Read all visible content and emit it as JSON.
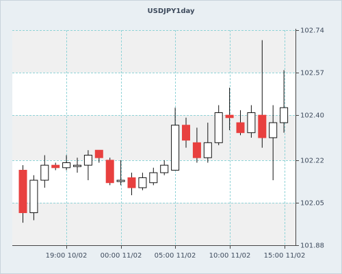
{
  "chart_data": {
    "type": "candlestick",
    "title": "USDJPY1day",
    "xlabel": "",
    "ylabel": "",
    "ylim": [
      101.88,
      102.74
    ],
    "y_ticks": [
      "102.74",
      "102.57",
      "102.40",
      "102.22",
      "102.05",
      "101.88"
    ],
    "x_ticks": [
      "19:00 10/02",
      "00:00 11/02",
      "05:00 11/02",
      "10:00 11/02",
      "15:00 11/02"
    ],
    "grid": true,
    "colors": {
      "up_fill": "#ffffff",
      "down_fill": "#e8403f",
      "candle_stroke": "#111111",
      "grid": "#8fd3d7",
      "plot_bg": "#ffffff",
      "alt_band": "#f0f0f0",
      "axis": "#444444",
      "text": "#3d4a5c"
    },
    "candles": [
      {
        "open": 102.18,
        "high": 102.2,
        "low": 101.97,
        "close": 102.01
      },
      {
        "open": 102.01,
        "high": 102.16,
        "low": 101.98,
        "close": 102.14
      },
      {
        "open": 102.14,
        "high": 102.24,
        "low": 102.11,
        "close": 102.2
      },
      {
        "open": 102.2,
        "high": 102.21,
        "low": 102.18,
        "close": 102.19
      },
      {
        "open": 102.19,
        "high": 102.24,
        "low": 102.18,
        "close": 102.21
      },
      {
        "open": 102.2,
        "high": 102.23,
        "low": 102.17,
        "close": 102.2
      },
      {
        "open": 102.2,
        "high": 102.26,
        "low": 102.14,
        "close": 102.24
      },
      {
        "open": 102.26,
        "high": 102.26,
        "low": 102.21,
        "close": 102.23
      },
      {
        "open": 102.22,
        "high": 102.23,
        "low": 102.12,
        "close": 102.13
      },
      {
        "open": 102.14,
        "high": 102.22,
        "low": 102.12,
        "close": 102.14
      },
      {
        "open": 102.15,
        "high": 102.17,
        "low": 102.08,
        "close": 102.11
      },
      {
        "open": 102.11,
        "high": 102.17,
        "low": 102.1,
        "close": 102.15
      },
      {
        "open": 102.13,
        "high": 102.19,
        "low": 102.12,
        "close": 102.17
      },
      {
        "open": 102.17,
        "high": 102.22,
        "low": 102.16,
        "close": 102.2
      },
      {
        "open": 102.18,
        "high": 102.43,
        "low": 102.18,
        "close": 102.36
      },
      {
        "open": 102.36,
        "high": 102.39,
        "low": 102.27,
        "close": 102.3
      },
      {
        "open": 102.29,
        "high": 102.35,
        "low": 102.21,
        "close": 102.23
      },
      {
        "open": 102.23,
        "high": 102.37,
        "low": 102.21,
        "close": 102.29
      },
      {
        "open": 102.29,
        "high": 102.44,
        "low": 102.28,
        "close": 102.41
      },
      {
        "open": 102.4,
        "high": 102.51,
        "low": 102.34,
        "close": 102.39
      },
      {
        "open": 102.37,
        "high": 102.42,
        "low": 102.32,
        "close": 102.33
      },
      {
        "open": 102.33,
        "high": 102.44,
        "low": 102.31,
        "close": 102.41
      },
      {
        "open": 102.4,
        "high": 102.7,
        "low": 102.27,
        "close": 102.31
      },
      {
        "open": 102.31,
        "high": 102.44,
        "low": 102.14,
        "close": 102.37
      },
      {
        "open": 102.37,
        "high": 102.58,
        "low": 102.33,
        "close": 102.43
      }
    ]
  }
}
